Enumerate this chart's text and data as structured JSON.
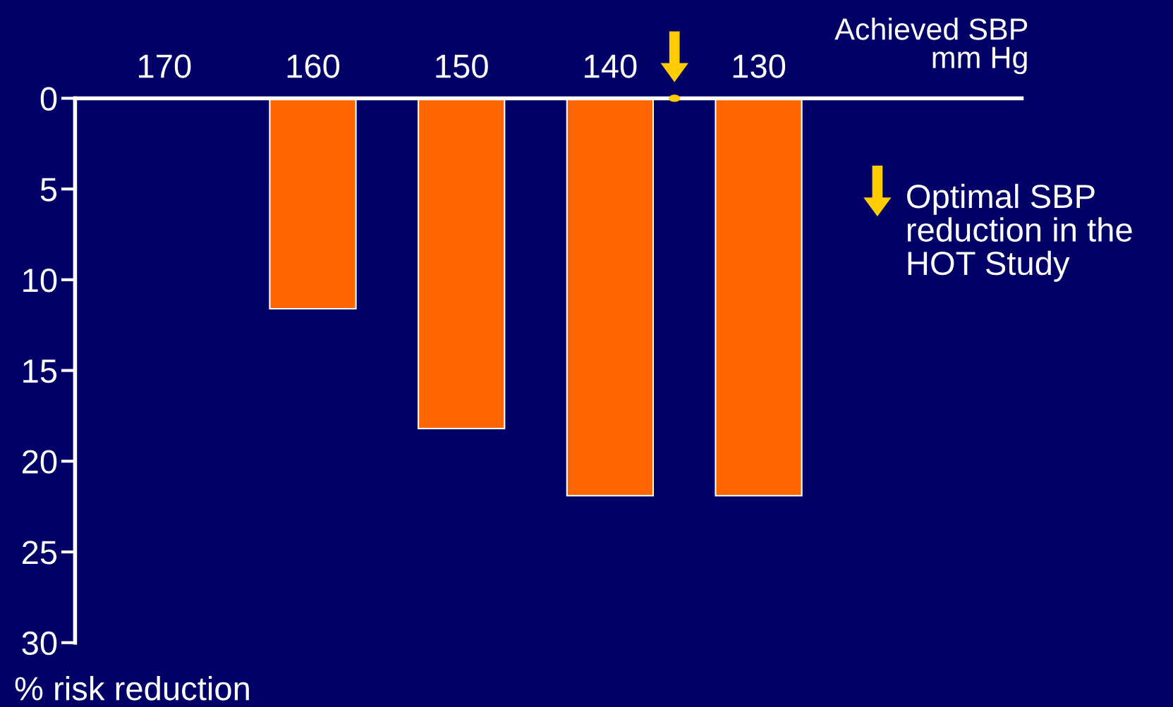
{
  "chart_data": {
    "type": "bar",
    "categories": [
      "170",
      "160",
      "150",
      "140",
      "130"
    ],
    "values": [
      null,
      11.6,
      18.2,
      21.9,
      21.9
    ],
    "color": "#ff6600",
    "xlabel": "Achieved SBP\nmm Hg",
    "ylabel": "% risk reduction",
    "ylim": [
      30,
      0
    ],
    "yticks": [
      0,
      5,
      10,
      15,
      20,
      25,
      30
    ],
    "annotations": [
      "Optimal SBP\nreduction in the\nHOT Study"
    ],
    "grid": false,
    "legend": false
  }
}
